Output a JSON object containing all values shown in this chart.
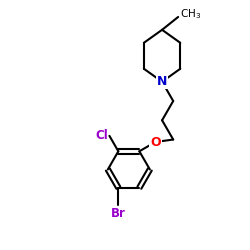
{
  "bg_color": "#ffffff",
  "bond_color": "#000000",
  "N_color": "#0000cd",
  "O_color": "#ff0000",
  "Cl_color": "#9900cc",
  "Br_color": "#9900cc",
  "line_width": 1.5,
  "figsize": [
    2.5,
    2.5
  ],
  "dpi": 100,
  "xlim": [
    0,
    10
  ],
  "ylim": [
    0,
    10
  ]
}
